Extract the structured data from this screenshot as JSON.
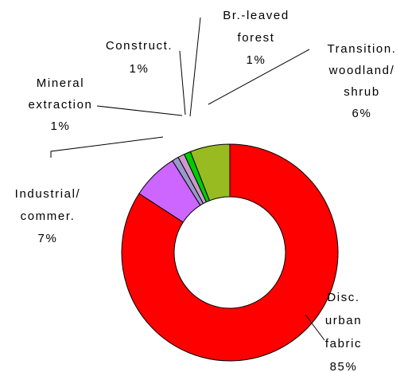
{
  "chart_data": {
    "type": "donut",
    "categories": [
      [
        "Disc.",
        "urban",
        "fabric"
      ],
      [
        "Industrial/",
        "commer."
      ],
      [
        "Mineral",
        "extraction"
      ],
      [
        "Construct."
      ],
      [
        "Br.-leaved",
        "forest"
      ],
      [
        "Transition.",
        "woodland/",
        "shrub"
      ]
    ],
    "values": [
      85,
      7,
      1,
      1,
      1,
      6
    ],
    "value_labels": [
      "85%",
      "7%",
      "1%",
      "1%",
      "1%",
      "6%"
    ],
    "colors": [
      "#ff0000",
      "#cc66ff",
      "#9999cc",
      "#cc99cc",
      "#00cc00",
      "#99bb22"
    ]
  }
}
